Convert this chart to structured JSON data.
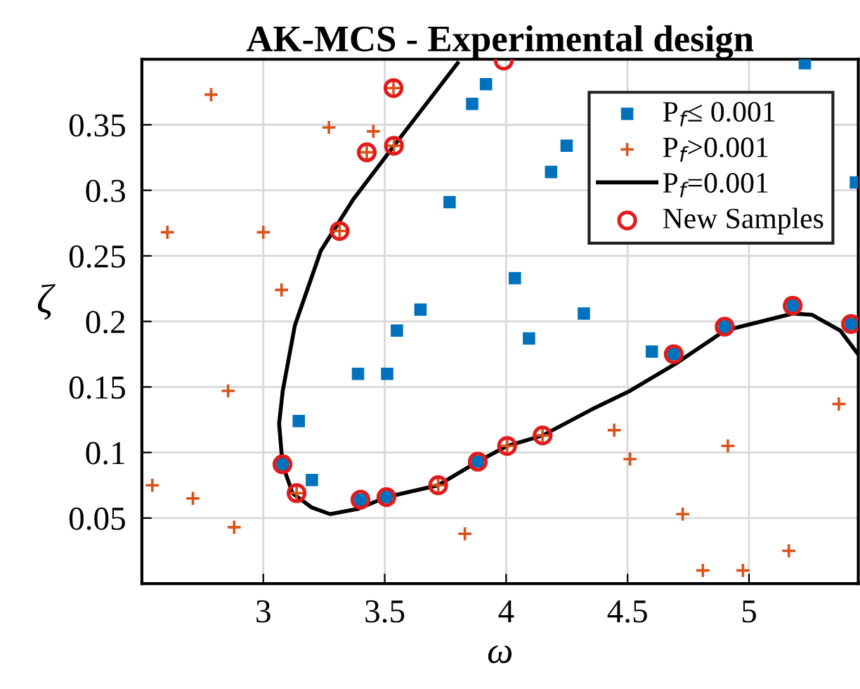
{
  "chart_data": {
    "type": "scatter",
    "title": "AK-MCS - Experimental design",
    "xlabel": "ω",
    "ylabel": "ζ",
    "xlim": [
      2.5,
      5.45
    ],
    "ylim": [
      0,
      0.4
    ],
    "xticks": [
      3,
      3.5,
      4,
      4.5,
      5
    ],
    "yticks": [
      0.05,
      0.1,
      0.15,
      0.2,
      0.25,
      0.3,
      0.35
    ],
    "grid": true,
    "legend": "top right",
    "series": [
      {
        "name": "P$_{f}$≤ 0.001",
        "marker": "square",
        "color": "#0072bd",
        "x": [
          3.39,
          3.51,
          3.55,
          3.647,
          3.767,
          3.86,
          3.917,
          3.146,
          3.2,
          3.079,
          3.4,
          3.507,
          3.883,
          5.23,
          5.44,
          4.249,
          4.185,
          4.036,
          4.32,
          4.094,
          4.6,
          4.69,
          4.9,
          5.18,
          5.42
        ],
        "values": [
          0.16,
          0.16,
          0.193,
          0.209,
          0.291,
          0.366,
          0.381,
          0.124,
          0.079,
          0.091,
          0.064,
          0.066,
          0.093,
          0.397,
          0.306,
          0.334,
          0.314,
          0.233,
          0.206,
          0.187,
          0.177,
          0.175,
          0.196,
          0.212,
          0.198
        ]
      },
      {
        "name": "P$_{f}$>0.001",
        "marker": "cross",
        "color": "#d95319",
        "x": [
          2.785,
          3.27,
          3.453,
          2.605,
          3.0,
          3.075,
          2.855,
          3.536,
          3.426,
          3.538,
          3.314,
          2.543,
          2.71,
          2.88,
          3.137,
          3.72,
          3.83,
          4.004,
          4.15,
          4.445,
          4.51,
          4.727,
          4.81,
          4.975,
          4.913,
          5.164,
          5.37
        ],
        "values": [
          0.373,
          0.348,
          0.345,
          0.268,
          0.268,
          0.224,
          0.147,
          0.378,
          0.329,
          0.334,
          0.269,
          0.075,
          0.065,
          0.043,
          0.069,
          0.075,
          0.038,
          0.105,
          0.113,
          0.117,
          0.095,
          0.053,
          0.01,
          0.01,
          0.105,
          0.025,
          0.137
        ]
      },
      {
        "name": "P$_{f}$=0.001",
        "type": "line",
        "marker": "none",
        "line_style": "solid",
        "color": "#000000",
        "x": [
          3.8,
          3.538,
          3.37,
          3.237,
          3.13,
          3.08,
          3.065,
          3.079,
          3.12,
          3.2,
          3.275,
          3.39,
          3.507,
          3.72,
          3.883,
          4.004,
          4.15,
          4.354,
          4.51,
          4.7,
          4.9,
          5.18,
          5.26,
          5.376,
          5.445
        ],
        "values": [
          0.397,
          0.334,
          0.293,
          0.254,
          0.197,
          0.147,
          0.122,
          0.091,
          0.069,
          0.058,
          0.053,
          0.057,
          0.066,
          0.075,
          0.093,
          0.105,
          0.113,
          0.133,
          0.147,
          0.168,
          0.193,
          0.206,
          0.205,
          0.193,
          0.176
        ]
      },
      {
        "name": "New Samples",
        "marker": "circle",
        "color": "#e31a1c",
        "x": [
          3.99,
          3.536,
          3.426,
          3.538,
          3.314,
          3.079,
          3.137,
          3.4,
          3.507,
          3.72,
          3.883,
          4.004,
          4.15,
          4.69,
          4.9,
          5.18,
          5.42
        ],
        "values": [
          0.399,
          0.378,
          0.329,
          0.334,
          0.269,
          0.091,
          0.069,
          0.064,
          0.066,
          0.075,
          0.093,
          0.105,
          0.113,
          0.175,
          0.196,
          0.212,
          0.198
        ]
      }
    ]
  }
}
